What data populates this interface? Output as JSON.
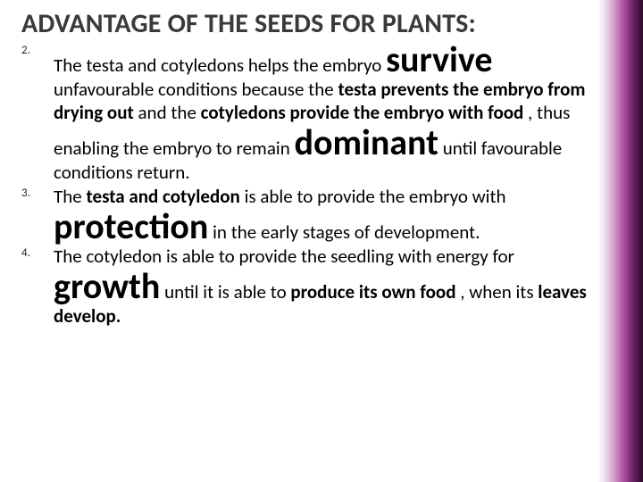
{
  "title": "ADVANTAGE OF THE SEEDS FOR PLANTS:",
  "items": {
    "n2": "2.",
    "n3": "3.",
    "n4": "4.",
    "p2a": "The testa and cotyledons helps the embryo ",
    "survive": "survive",
    "p2b": " unfavourable conditions because  the ",
    "p2c": "testa prevents the embryo from drying out",
    "p2d": " and the ",
    "p2e": "cotyledons provide the embryo with food",
    "p2f": ", thus enabling the embryo to remain ",
    "dominant": "dominant",
    "p2g": " until favourable conditions return.",
    "p3a": "The ",
    "p3b": "testa and cotyledon",
    "p3c": " is able to provide the embryo with ",
    "protection": "protection",
    "p3d": "  in the early stages of development.",
    "p4a": "The cotyledon is able to provide the seedling with energy for ",
    "growth": "growth",
    "p4b": " until it is able to ",
    "p4c": "produce its own food",
    "p4d": ", when its ",
    "p4e": "leaves develop."
  },
  "colors": {
    "text": "#000000",
    "title": "#3a3a3a",
    "gradient_light": "#f3e6f2",
    "gradient_mid": "#b25aa8",
    "gradient_dark": "#2d0a28",
    "background": "#ffffff"
  }
}
